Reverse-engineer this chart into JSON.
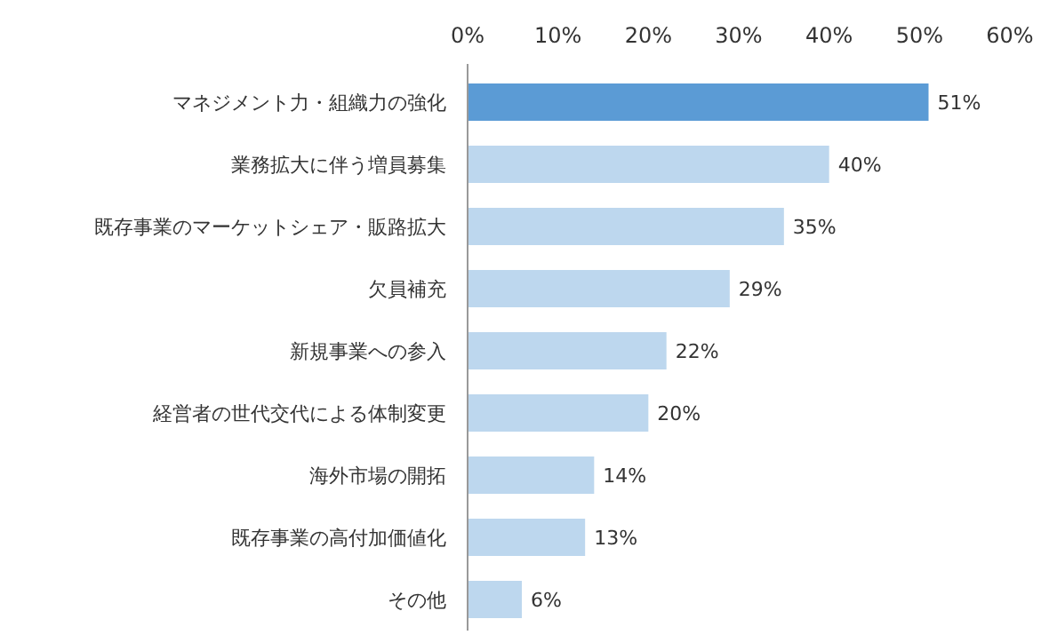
{
  "chart_data": {
    "type": "bar",
    "orientation": "horizontal",
    "categories": [
      "マネジメント力・組織力の強化",
      "業務拡大に伴う増員募集",
      "既存事業のマーケットシェア・販路拡大",
      "欠員補充",
      "新規事業への参入",
      "経営者の世代交代による体制変更",
      "海外市場の開拓",
      "既存事業の高付加価値化",
      "その他"
    ],
    "values": [
      51,
      40,
      35,
      29,
      22,
      20,
      14,
      13,
      6
    ],
    "colors": [
      "#5b9bd5",
      "#bdd7ee",
      "#bdd7ee",
      "#bdd7ee",
      "#bdd7ee",
      "#bdd7ee",
      "#bdd7ee",
      "#bdd7ee",
      "#bdd7ee"
    ],
    "value_labels": [
      "51%",
      "40%",
      "35%",
      "29%",
      "22%",
      "20%",
      "14%",
      "13%",
      "6%"
    ],
    "xlim": [
      0,
      60
    ],
    "xticks": [
      {
        "value": 0,
        "label": "0%"
      },
      {
        "value": 10,
        "label": "10%"
      },
      {
        "value": 20,
        "label": "20%"
      },
      {
        "value": 30,
        "label": "30%"
      },
      {
        "value": 40,
        "label": "40%"
      },
      {
        "value": 50,
        "label": "50%"
      },
      {
        "value": 60,
        "label": "60%"
      }
    ]
  }
}
